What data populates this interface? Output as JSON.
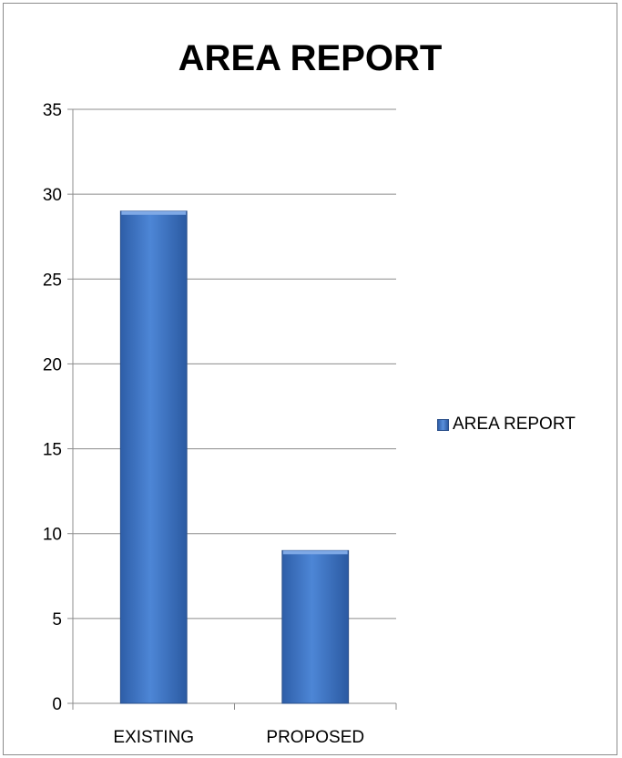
{
  "chart_data": {
    "type": "bar",
    "title": "AREA REPORT",
    "categories": [
      "EXISTING",
      "PROPOSED"
    ],
    "series": [
      {
        "name": "AREA REPORT",
        "values": [
          29,
          9
        ]
      }
    ],
    "ylim": [
      0,
      35
    ],
    "yticks": [
      0,
      5,
      10,
      15,
      20,
      25,
      30,
      35
    ],
    "grid": true,
    "legend_position": "right",
    "bar_color": "#3f73c3"
  }
}
